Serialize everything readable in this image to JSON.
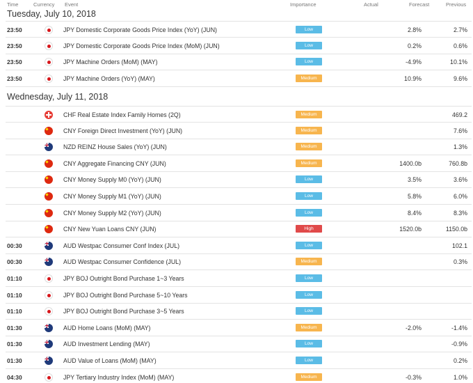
{
  "columns": {
    "time": "Time",
    "currency": "Currency",
    "event": "Event",
    "importance": "Importance",
    "actual": "Actual",
    "forecast": "Forecast",
    "previous": "Previous"
  },
  "days": [
    {
      "date": "Tuesday, July 10, 2018",
      "rows": [
        {
          "time": "23:50",
          "flag": "jp",
          "flag_icon": "japan-flag-icon",
          "event": "JPY Domestic Corporate Goods Price Index (YoY) (JUN)",
          "importance": "Low",
          "actual": "",
          "forecast": "2.8%",
          "previous": "2.7%"
        },
        {
          "time": "23:50",
          "flag": "jp",
          "flag_icon": "japan-flag-icon",
          "event": "JPY Domestic Corporate Goods Price Index (MoM) (JUN)",
          "importance": "Low",
          "actual": "",
          "forecast": "0.2%",
          "previous": "0.6%"
        },
        {
          "time": "23:50",
          "flag": "jp",
          "flag_icon": "japan-flag-icon",
          "event": "JPY Machine Orders (MoM) (MAY)",
          "importance": "Low",
          "actual": "",
          "forecast": "-4.9%",
          "previous": "10.1%"
        },
        {
          "time": "23:50",
          "flag": "jp",
          "flag_icon": "japan-flag-icon",
          "event": "JPY Machine Orders (YoY) (MAY)",
          "importance": "Medium",
          "actual": "",
          "forecast": "10.9%",
          "previous": "9.6%"
        }
      ]
    },
    {
      "date": "Wednesday, July 11, 2018",
      "rows": [
        {
          "time": "",
          "flag": "ch",
          "flag_icon": "switzerland-flag-icon",
          "event": "CHF Real Estate Index Family Homes (2Q)",
          "importance": "Medium",
          "actual": "",
          "forecast": "",
          "previous": "469.2"
        },
        {
          "time": "",
          "flag": "cn",
          "flag_icon": "china-flag-icon",
          "event": "CNY Foreign Direct Investment (YoY) (JUN)",
          "importance": "Medium",
          "actual": "",
          "forecast": "",
          "previous": "7.6%"
        },
        {
          "time": "",
          "flag": "nz",
          "flag_icon": "new-zealand-flag-icon",
          "event": "NZD REINZ House Sales (YoY) (JUN)",
          "importance": "Medium",
          "actual": "",
          "forecast": "",
          "previous": "1.3%"
        },
        {
          "time": "",
          "flag": "cn",
          "flag_icon": "china-flag-icon",
          "event": "CNY Aggregate Financing CNY (JUN)",
          "importance": "Medium",
          "actual": "",
          "forecast": "1400.0b",
          "previous": "760.8b"
        },
        {
          "time": "",
          "flag": "cn",
          "flag_icon": "china-flag-icon",
          "event": "CNY Money Supply M0 (YoY) (JUN)",
          "importance": "Low",
          "actual": "",
          "forecast": "3.5%",
          "previous": "3.6%"
        },
        {
          "time": "",
          "flag": "cn",
          "flag_icon": "china-flag-icon",
          "event": "CNY Money Supply M1 (YoY) (JUN)",
          "importance": "Low",
          "actual": "",
          "forecast": "5.8%",
          "previous": "6.0%"
        },
        {
          "time": "",
          "flag": "cn",
          "flag_icon": "china-flag-icon",
          "event": "CNY Money Supply M2 (YoY) (JUN)",
          "importance": "Low",
          "actual": "",
          "forecast": "8.4%",
          "previous": "8.3%"
        },
        {
          "time": "",
          "flag": "cn",
          "flag_icon": "china-flag-icon",
          "event": "CNY New Yuan Loans CNY (JUN)",
          "importance": "High",
          "actual": "",
          "forecast": "1520.0b",
          "previous": "1150.0b"
        },
        {
          "time": "00:30",
          "flag": "au",
          "flag_icon": "australia-flag-icon",
          "event": "AUD Westpac Consumer Conf Index (JUL)",
          "importance": "Low",
          "actual": "",
          "forecast": "",
          "previous": "102.1"
        },
        {
          "time": "00:30",
          "flag": "au",
          "flag_icon": "australia-flag-icon",
          "event": "AUD Westpac Consumer Confidence (JUL)",
          "importance": "Medium",
          "actual": "",
          "forecast": "",
          "previous": "0.3%"
        },
        {
          "time": "01:10",
          "flag": "jp",
          "flag_icon": "japan-flag-icon",
          "event": "JPY BOJ Outright Bond Purchase 1~3 Years",
          "importance": "Low",
          "actual": "",
          "forecast": "",
          "previous": ""
        },
        {
          "time": "01:10",
          "flag": "jp",
          "flag_icon": "japan-flag-icon",
          "event": "JPY BOJ Outright Bond Purchase 5~10 Years",
          "importance": "Low",
          "actual": "",
          "forecast": "",
          "previous": ""
        },
        {
          "time": "01:10",
          "flag": "jp",
          "flag_icon": "japan-flag-icon",
          "event": "JPY BOJ Outright Bond Purchase 3~5 Years",
          "importance": "Low",
          "actual": "",
          "forecast": "",
          "previous": ""
        },
        {
          "time": "01:30",
          "flag": "au",
          "flag_icon": "australia-flag-icon",
          "event": "AUD Home Loans (MoM) (MAY)",
          "importance": "Medium",
          "actual": "",
          "forecast": "-2.0%",
          "previous": "-1.4%"
        },
        {
          "time": "01:30",
          "flag": "au",
          "flag_icon": "australia-flag-icon",
          "event": "AUD Investment Lending (MAY)",
          "importance": "Low",
          "actual": "",
          "forecast": "",
          "previous": "-0.9%"
        },
        {
          "time": "01:30",
          "flag": "au",
          "flag_icon": "australia-flag-icon",
          "event": "AUD Value of Loans (MoM) (MAY)",
          "importance": "Low",
          "actual": "",
          "forecast": "",
          "previous": "0.2%"
        },
        {
          "time": "04:30",
          "flag": "jp",
          "flag_icon": "japan-flag-icon",
          "event": "JPY Tertiary Industry Index (MoM) (MAY)",
          "importance": "Medium",
          "actual": "",
          "forecast": "-0.3%",
          "previous": "1.0%"
        }
      ]
    }
  ]
}
